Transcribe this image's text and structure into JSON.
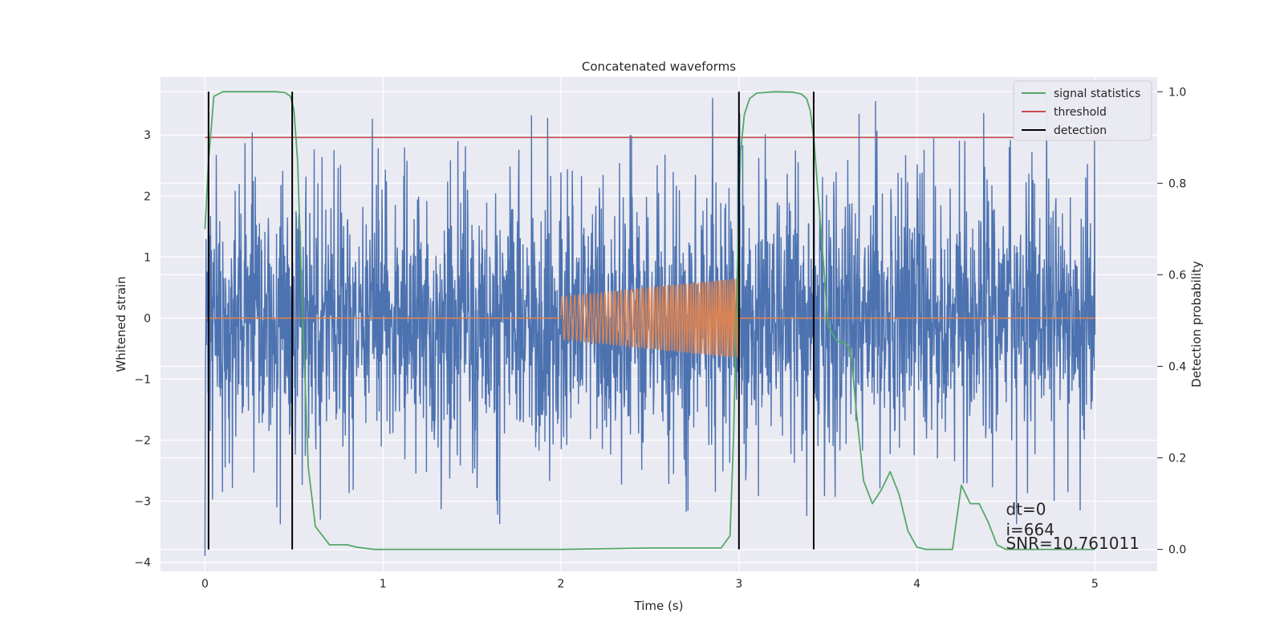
{
  "chart_data": {
    "type": "line",
    "title": "Concatenated waveforms",
    "xlabel": "Time (s)",
    "ylabel_left": "Whitened strain",
    "ylabel_right": "Detection probability",
    "xlim": [
      -0.25,
      5.35
    ],
    "ylim_left": [
      -4.15,
      3.95
    ],
    "ylim_right": [
      -0.048,
      1.032
    ],
    "xticks": [
      0,
      1,
      2,
      3,
      4,
      5
    ],
    "xtick_labels": [
      "0",
      "1",
      "2",
      "3",
      "4",
      "5"
    ],
    "yticks_left": [
      -4,
      -3,
      -2,
      -1,
      0,
      1,
      2,
      3
    ],
    "ytick_labels_left": [
      "−4",
      "−3",
      "−2",
      "−1",
      "0",
      "1",
      "2",
      "3"
    ],
    "yticks_right": [
      0.0,
      0.2,
      0.4,
      0.6,
      0.8,
      1.0
    ],
    "ytick_labels_right": [
      "0.0",
      "0.2",
      "0.4",
      "0.6",
      "0.8",
      "1.0"
    ],
    "grid": true,
    "legend_position": "top-right",
    "legend": [
      {
        "label": "signal statistics",
        "color": "#55a868"
      },
      {
        "label": "threshold",
        "color": "#c44e52"
      },
      {
        "label": "detection",
        "color": "#000000"
      }
    ],
    "series": [
      {
        "name": "whitened strain (noisy)",
        "axis": "left",
        "color": "#4c72b0",
        "x_range": [
          0,
          5
        ],
        "amplitude_range": [
          -3.9,
          3.6
        ]
      },
      {
        "name": "template waveform",
        "axis": "left",
        "color": "#dd8452",
        "x_flat": [
          [
            0,
            2
          ],
          [
            3,
            5
          ]
        ],
        "chirp": {
          "x_start": 2.0,
          "x_end": 3.0,
          "amp_start": 0.35,
          "amp_end": 0.65
        }
      },
      {
        "name": "signal statistics",
        "axis": "right",
        "color": "#55a868",
        "x": [
          0.0,
          0.02,
          0.05,
          0.1,
          0.2,
          0.4,
          0.45,
          0.48,
          0.5,
          0.52,
          0.55,
          0.58,
          0.62,
          0.7,
          0.8,
          0.85,
          0.95,
          1.5,
          2.0,
          2.5,
          2.9,
          2.95,
          2.97,
          2.99,
          3.01,
          3.03,
          3.06,
          3.1,
          3.2,
          3.3,
          3.35,
          3.38,
          3.4,
          3.42,
          3.45,
          3.48,
          3.5,
          3.55,
          3.6,
          3.63,
          3.66,
          3.7,
          3.75,
          3.8,
          3.85,
          3.9,
          3.95,
          4.0,
          4.05,
          4.1,
          4.2,
          4.25,
          4.3,
          4.35,
          4.4,
          4.45,
          4.5,
          4.6,
          4.8,
          5.0
        ],
        "y": [
          0.7,
          0.85,
          0.99,
          1.0,
          1.0,
          1.0,
          0.998,
          0.99,
          0.96,
          0.85,
          0.5,
          0.18,
          0.05,
          0.01,
          0.01,
          0.005,
          0.0,
          0.0,
          0.0,
          0.003,
          0.003,
          0.03,
          0.25,
          0.6,
          0.87,
          0.95,
          0.985,
          0.997,
          1.0,
          0.999,
          0.995,
          0.985,
          0.96,
          0.9,
          0.75,
          0.6,
          0.49,
          0.455,
          0.45,
          0.43,
          0.3,
          0.15,
          0.1,
          0.13,
          0.17,
          0.12,
          0.04,
          0.005,
          0.0,
          0.0,
          0.0,
          0.14,
          0.1,
          0.1,
          0.06,
          0.01,
          0.0,
          0.0,
          0.0,
          0.0
        ]
      },
      {
        "name": "threshold",
        "axis": "right",
        "color": "#c44e52",
        "x": [
          0.0,
          5.1
        ],
        "y": [
          0.9,
          0.9
        ]
      },
      {
        "name": "detection",
        "axis": "right",
        "color": "#000000",
        "vlines_x": [
          0.02,
          0.49,
          3.0,
          3.42
        ],
        "vlines_y": [
          0.0,
          1.0
        ]
      }
    ],
    "annotations": [
      {
        "text": "dt=0",
        "x": 4.5,
        "y_right": 0.09
      },
      {
        "text": "i=664",
        "x": 4.5,
        "y_right": 0.045
      },
      {
        "text": "SNR=10.761011",
        "x": 4.5,
        "y_right": 0.015
      }
    ]
  }
}
